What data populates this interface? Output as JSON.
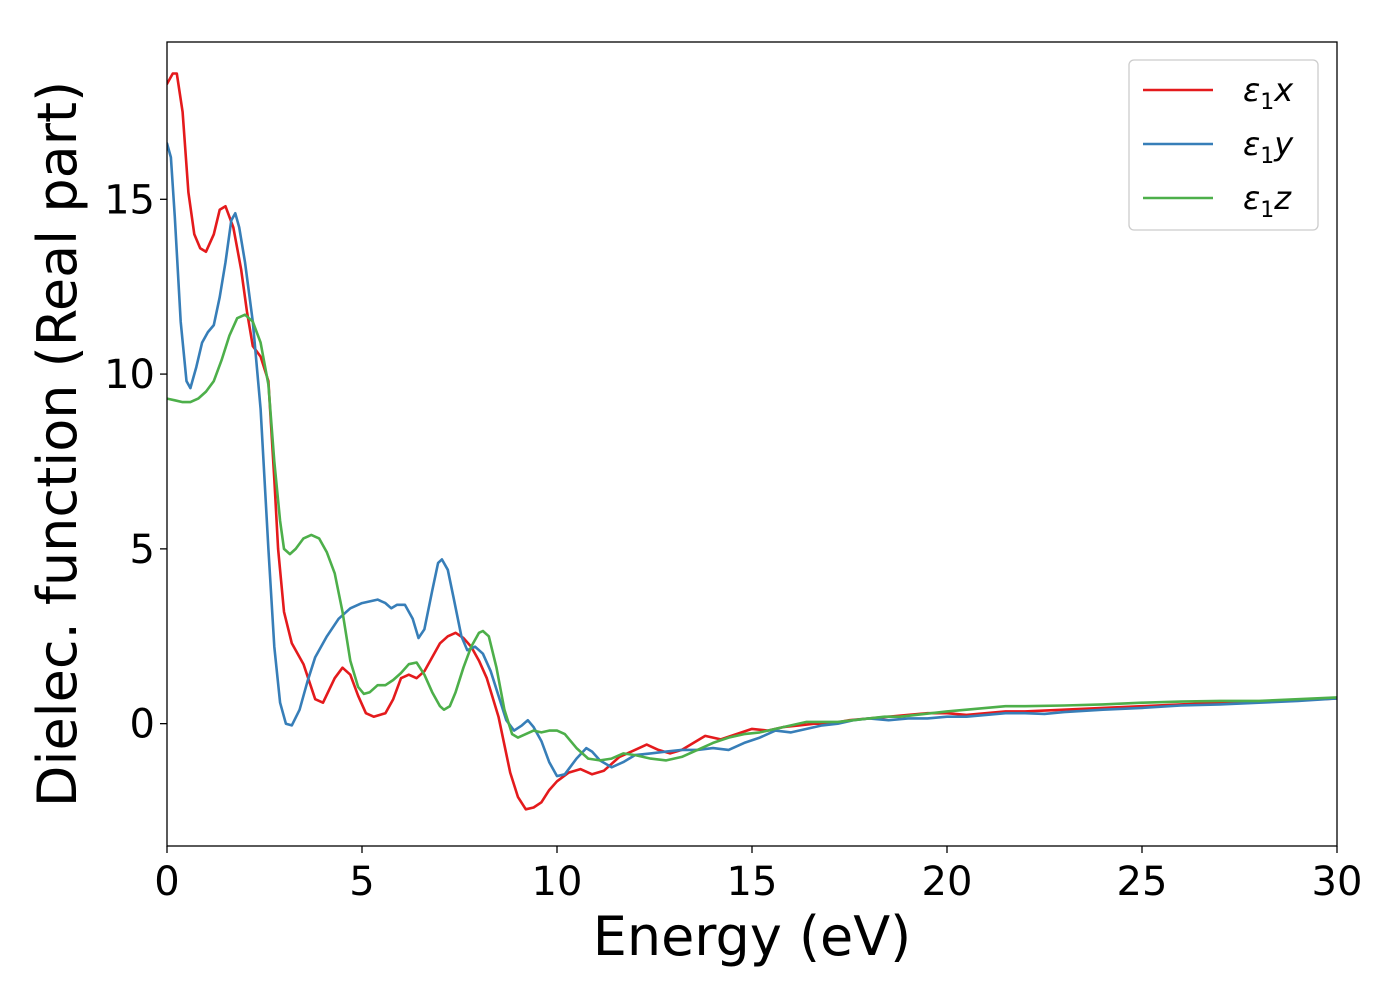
{
  "chart_data": {
    "type": "line",
    "xlabel": "Energy (eV)",
    "ylabel": "Dielec. function (Real part)",
    "xlim": [
      0,
      30
    ],
    "ylim": [
      -3.5,
      19.5
    ],
    "xticks": [
      0,
      5,
      10,
      15,
      20,
      25,
      30
    ],
    "yticks": [
      0,
      5,
      10,
      15
    ],
    "grid": false,
    "legend_position": "top-right",
    "series": [
      {
        "name": "x",
        "legend_symbol": "ε",
        "legend_sub": "1",
        "legend_var": "x",
        "color": "#e41a1c",
        "points": [
          [
            0,
            18.3
          ],
          [
            0.15,
            18.6
          ],
          [
            0.25,
            18.6
          ],
          [
            0.4,
            17.5
          ],
          [
            0.55,
            15.2
          ],
          [
            0.7,
            14.0
          ],
          [
            0.85,
            13.6
          ],
          [
            1.0,
            13.5
          ],
          [
            1.2,
            14.0
          ],
          [
            1.35,
            14.7
          ],
          [
            1.5,
            14.8
          ],
          [
            1.7,
            14.2
          ],
          [
            1.9,
            13.0
          ],
          [
            2.05,
            11.8
          ],
          [
            2.2,
            10.8
          ],
          [
            2.4,
            10.5
          ],
          [
            2.6,
            9.8
          ],
          [
            2.75,
            7.0
          ],
          [
            2.85,
            5.0
          ],
          [
            3.0,
            3.2
          ],
          [
            3.2,
            2.3
          ],
          [
            3.5,
            1.7
          ],
          [
            3.8,
            0.7
          ],
          [
            4.0,
            0.6
          ],
          [
            4.3,
            1.3
          ],
          [
            4.5,
            1.6
          ],
          [
            4.7,
            1.4
          ],
          [
            4.9,
            0.8
          ],
          [
            5.1,
            0.3
          ],
          [
            5.3,
            0.2
          ],
          [
            5.6,
            0.3
          ],
          [
            5.8,
            0.7
          ],
          [
            6.0,
            1.3
          ],
          [
            6.2,
            1.4
          ],
          [
            6.4,
            1.3
          ],
          [
            6.6,
            1.5
          ],
          [
            6.8,
            1.9
          ],
          [
            7.0,
            2.3
          ],
          [
            7.2,
            2.5
          ],
          [
            7.4,
            2.6
          ],
          [
            7.6,
            2.45
          ],
          [
            7.8,
            2.2
          ],
          [
            8.0,
            1.8
          ],
          [
            8.2,
            1.3
          ],
          [
            8.5,
            0.2
          ],
          [
            8.8,
            -1.4
          ],
          [
            9.0,
            -2.1
          ],
          [
            9.2,
            -2.45
          ],
          [
            9.4,
            -2.4
          ],
          [
            9.6,
            -2.25
          ],
          [
            9.8,
            -1.9
          ],
          [
            10.0,
            -1.65
          ],
          [
            10.3,
            -1.4
          ],
          [
            10.6,
            -1.3
          ],
          [
            10.9,
            -1.45
          ],
          [
            11.2,
            -1.35
          ],
          [
            11.6,
            -0.95
          ],
          [
            12.0,
            -0.75
          ],
          [
            12.3,
            -0.6
          ],
          [
            12.6,
            -0.75
          ],
          [
            12.9,
            -0.85
          ],
          [
            13.2,
            -0.75
          ],
          [
            13.5,
            -0.55
          ],
          [
            13.8,
            -0.35
          ],
          [
            14.2,
            -0.45
          ],
          [
            14.6,
            -0.3
          ],
          [
            15.0,
            -0.15
          ],
          [
            15.4,
            -0.2
          ],
          [
            15.8,
            -0.1
          ],
          [
            16.2,
            -0.05
          ],
          [
            16.6,
            0.0
          ],
          [
            17.0,
            0.0
          ],
          [
            17.5,
            0.1
          ],
          [
            18.0,
            0.15
          ],
          [
            18.5,
            0.2
          ],
          [
            19.0,
            0.25
          ],
          [
            19.5,
            0.3
          ],
          [
            20.0,
            0.3
          ],
          [
            20.5,
            0.25
          ],
          [
            21.0,
            0.3
          ],
          [
            21.5,
            0.35
          ],
          [
            22.0,
            0.35
          ],
          [
            23.0,
            0.4
          ],
          [
            24.0,
            0.45
          ],
          [
            25.0,
            0.5
          ],
          [
            26.0,
            0.55
          ],
          [
            27.0,
            0.6
          ],
          [
            28.0,
            0.62
          ],
          [
            29.0,
            0.67
          ],
          [
            30.0,
            0.72
          ]
        ]
      },
      {
        "name": "y",
        "legend_symbol": "ε",
        "legend_sub": "1",
        "legend_var": "y",
        "color": "#377eb8",
        "points": [
          [
            0,
            16.6
          ],
          [
            0.1,
            16.2
          ],
          [
            0.2,
            14.5
          ],
          [
            0.35,
            11.5
          ],
          [
            0.5,
            9.8
          ],
          [
            0.6,
            9.6
          ],
          [
            0.75,
            10.2
          ],
          [
            0.9,
            10.9
          ],
          [
            1.05,
            11.2
          ],
          [
            1.2,
            11.4
          ],
          [
            1.35,
            12.2
          ],
          [
            1.5,
            13.2
          ],
          [
            1.65,
            14.4
          ],
          [
            1.75,
            14.6
          ],
          [
            1.85,
            14.2
          ],
          [
            2.0,
            13.2
          ],
          [
            2.2,
            11.5
          ],
          [
            2.4,
            9.0
          ],
          [
            2.6,
            5.0
          ],
          [
            2.75,
            2.2
          ],
          [
            2.9,
            0.6
          ],
          [
            3.05,
            0.0
          ],
          [
            3.2,
            -0.05
          ],
          [
            3.4,
            0.4
          ],
          [
            3.6,
            1.2
          ],
          [
            3.8,
            1.9
          ],
          [
            4.1,
            2.5
          ],
          [
            4.4,
            3.0
          ],
          [
            4.7,
            3.3
          ],
          [
            5.0,
            3.45
          ],
          [
            5.4,
            3.55
          ],
          [
            5.6,
            3.45
          ],
          [
            5.75,
            3.3
          ],
          [
            5.9,
            3.4
          ],
          [
            6.1,
            3.4
          ],
          [
            6.3,
            3.0
          ],
          [
            6.45,
            2.45
          ],
          [
            6.6,
            2.7
          ],
          [
            6.8,
            3.8
          ],
          [
            6.95,
            4.6
          ],
          [
            7.05,
            4.7
          ],
          [
            7.2,
            4.4
          ],
          [
            7.35,
            3.6
          ],
          [
            7.55,
            2.5
          ],
          [
            7.7,
            2.1
          ],
          [
            7.9,
            2.2
          ],
          [
            8.1,
            2.0
          ],
          [
            8.3,
            1.5
          ],
          [
            8.5,
            0.8
          ],
          [
            8.7,
            0.1
          ],
          [
            8.9,
            -0.2
          ],
          [
            9.1,
            -0.05
          ],
          [
            9.25,
            0.1
          ],
          [
            9.4,
            -0.1
          ],
          [
            9.6,
            -0.5
          ],
          [
            9.8,
            -1.1
          ],
          [
            10.0,
            -1.5
          ],
          [
            10.2,
            -1.45
          ],
          [
            10.5,
            -1.0
          ],
          [
            10.75,
            -0.7
          ],
          [
            10.9,
            -0.8
          ],
          [
            11.1,
            -1.05
          ],
          [
            11.4,
            -1.25
          ],
          [
            11.7,
            -1.1
          ],
          [
            12.0,
            -0.9
          ],
          [
            12.4,
            -0.85
          ],
          [
            12.8,
            -0.8
          ],
          [
            13.2,
            -0.75
          ],
          [
            13.6,
            -0.75
          ],
          [
            14.0,
            -0.7
          ],
          [
            14.4,
            -0.75
          ],
          [
            14.8,
            -0.55
          ],
          [
            15.2,
            -0.4
          ],
          [
            15.6,
            -0.2
          ],
          [
            16.0,
            -0.25
          ],
          [
            16.4,
            -0.15
          ],
          [
            16.8,
            -0.05
          ],
          [
            17.2,
            0.0
          ],
          [
            17.6,
            0.1
          ],
          [
            18.0,
            0.15
          ],
          [
            18.5,
            0.1
          ],
          [
            19.0,
            0.15
          ],
          [
            19.5,
            0.15
          ],
          [
            20.0,
            0.2
          ],
          [
            20.5,
            0.2
          ],
          [
            21.0,
            0.25
          ],
          [
            21.5,
            0.3
          ],
          [
            22.0,
            0.3
          ],
          [
            22.5,
            0.28
          ],
          [
            23.0,
            0.33
          ],
          [
            24.0,
            0.4
          ],
          [
            25.0,
            0.45
          ],
          [
            26.0,
            0.52
          ],
          [
            27.0,
            0.55
          ],
          [
            28.0,
            0.6
          ],
          [
            29.0,
            0.65
          ],
          [
            30.0,
            0.72
          ]
        ]
      },
      {
        "name": "z",
        "legend_symbol": "ε",
        "legend_sub": "1",
        "legend_var": "z",
        "color": "#4daf4a",
        "points": [
          [
            0,
            9.3
          ],
          [
            0.2,
            9.25
          ],
          [
            0.4,
            9.2
          ],
          [
            0.6,
            9.2
          ],
          [
            0.8,
            9.3
          ],
          [
            1.0,
            9.5
          ],
          [
            1.2,
            9.8
          ],
          [
            1.4,
            10.4
          ],
          [
            1.6,
            11.1
          ],
          [
            1.8,
            11.6
          ],
          [
            2.0,
            11.7
          ],
          [
            2.2,
            11.5
          ],
          [
            2.4,
            10.9
          ],
          [
            2.6,
            9.7
          ],
          [
            2.75,
            7.5
          ],
          [
            2.9,
            5.8
          ],
          [
            3.0,
            5.0
          ],
          [
            3.15,
            4.85
          ],
          [
            3.3,
            5.0
          ],
          [
            3.5,
            5.3
          ],
          [
            3.7,
            5.4
          ],
          [
            3.9,
            5.3
          ],
          [
            4.1,
            4.9
          ],
          [
            4.3,
            4.3
          ],
          [
            4.5,
            3.2
          ],
          [
            4.7,
            1.8
          ],
          [
            4.9,
            1.05
          ],
          [
            5.05,
            0.85
          ],
          [
            5.2,
            0.9
          ],
          [
            5.4,
            1.1
          ],
          [
            5.6,
            1.1
          ],
          [
            5.8,
            1.25
          ],
          [
            6.0,
            1.45
          ],
          [
            6.2,
            1.7
          ],
          [
            6.4,
            1.75
          ],
          [
            6.6,
            1.4
          ],
          [
            6.8,
            0.9
          ],
          [
            7.0,
            0.5
          ],
          [
            7.1,
            0.4
          ],
          [
            7.25,
            0.5
          ],
          [
            7.4,
            0.9
          ],
          [
            7.6,
            1.6
          ],
          [
            7.8,
            2.2
          ],
          [
            8.0,
            2.6
          ],
          [
            8.1,
            2.65
          ],
          [
            8.25,
            2.5
          ],
          [
            8.45,
            1.6
          ],
          [
            8.65,
            0.4
          ],
          [
            8.85,
            -0.3
          ],
          [
            9.0,
            -0.4
          ],
          [
            9.2,
            -0.3
          ],
          [
            9.4,
            -0.2
          ],
          [
            9.6,
            -0.25
          ],
          [
            9.8,
            -0.2
          ],
          [
            10.0,
            -0.2
          ],
          [
            10.2,
            -0.3
          ],
          [
            10.5,
            -0.7
          ],
          [
            10.8,
            -1.0
          ],
          [
            11.1,
            -1.05
          ],
          [
            11.4,
            -1.0
          ],
          [
            11.7,
            -0.85
          ],
          [
            12.0,
            -0.9
          ],
          [
            12.4,
            -1.0
          ],
          [
            12.8,
            -1.05
          ],
          [
            13.2,
            -0.95
          ],
          [
            13.6,
            -0.75
          ],
          [
            14.0,
            -0.55
          ],
          [
            14.4,
            -0.4
          ],
          [
            14.8,
            -0.3
          ],
          [
            15.2,
            -0.25
          ],
          [
            15.6,
            -0.15
          ],
          [
            16.0,
            -0.05
          ],
          [
            16.4,
            0.05
          ],
          [
            16.8,
            0.05
          ],
          [
            17.2,
            0.05
          ],
          [
            17.6,
            0.1
          ],
          [
            18.0,
            0.15
          ],
          [
            18.4,
            0.2
          ],
          [
            18.8,
            0.2
          ],
          [
            19.2,
            0.25
          ],
          [
            19.6,
            0.3
          ],
          [
            20.0,
            0.35
          ],
          [
            20.5,
            0.4
          ],
          [
            21.0,
            0.45
          ],
          [
            21.5,
            0.5
          ],
          [
            22.0,
            0.5
          ],
          [
            23.0,
            0.52
          ],
          [
            24.0,
            0.55
          ],
          [
            25.0,
            0.6
          ],
          [
            26.0,
            0.63
          ],
          [
            27.0,
            0.65
          ],
          [
            28.0,
            0.65
          ],
          [
            29.0,
            0.7
          ],
          [
            30.0,
            0.75
          ]
        ]
      }
    ]
  }
}
